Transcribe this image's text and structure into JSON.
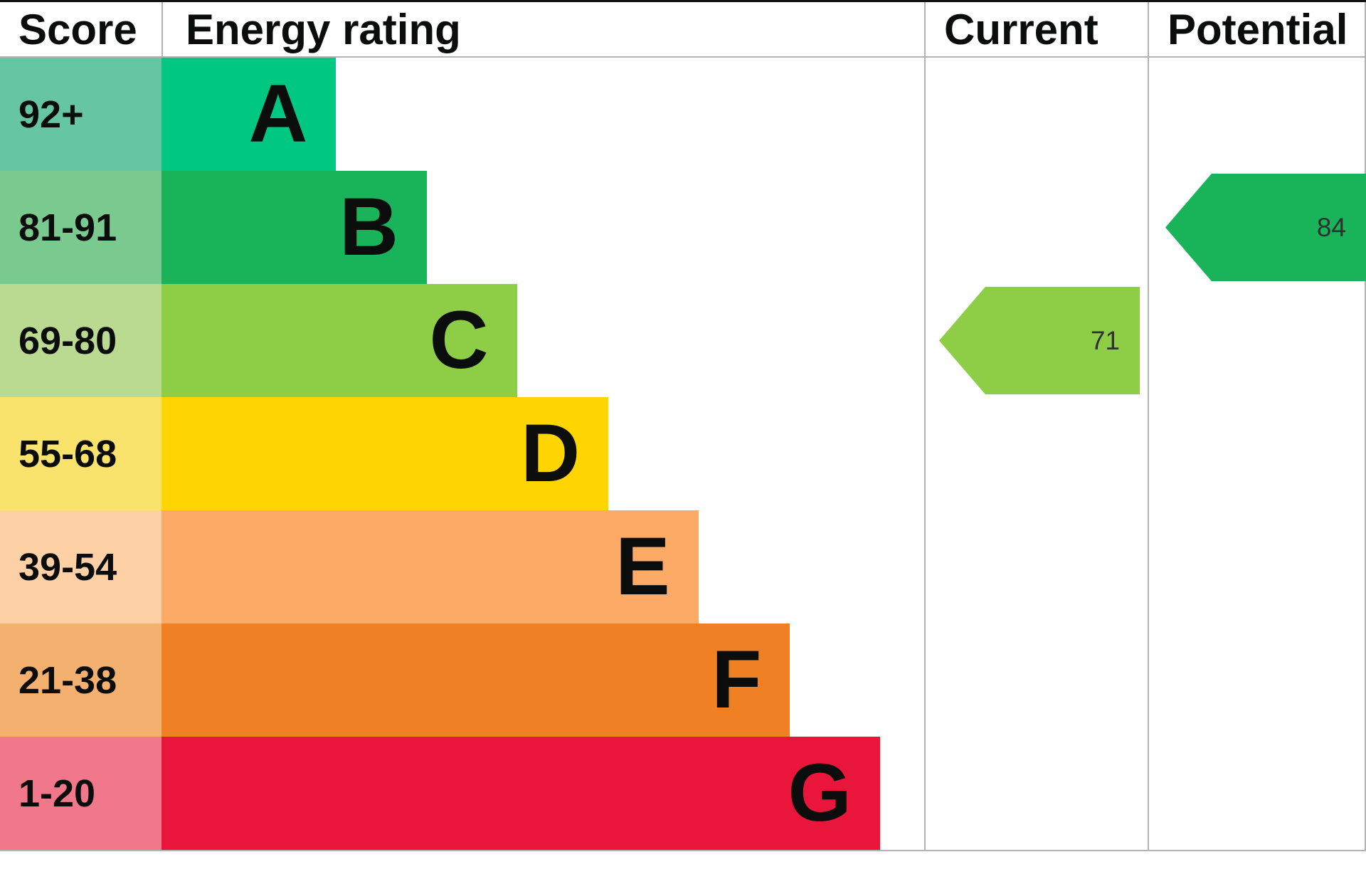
{
  "header": {
    "score": "Score",
    "energy_rating": "Energy rating",
    "current": "Current",
    "potential": "Potential"
  },
  "chart_data": {
    "type": "bar",
    "chart_kind": "epc-energy-rating",
    "columns": [
      "Score",
      "Energy rating",
      "Current",
      "Potential"
    ],
    "bands": [
      {
        "letter": "A",
        "range": "92+",
        "color": "#00c781",
        "tint": "#65c6a1",
        "width": "22.9%"
      },
      {
        "letter": "B",
        "range": "81-91",
        "color": "#19b459",
        "tint": "#7ac98f",
        "width": "34.8%"
      },
      {
        "letter": "C",
        "range": "69-80",
        "color": "#8dce46",
        "tint": "#b9da90",
        "width": "46.6%"
      },
      {
        "letter": "D",
        "range": "55-68",
        "color": "#ffd500",
        "tint": "#f9e36c",
        "width": "58.6%"
      },
      {
        "letter": "E",
        "range": "39-54",
        "color": "#fcaa65",
        "tint": "#fdd0a5",
        "width": "70.4%"
      },
      {
        "letter": "F",
        "range": "21-38",
        "color": "#ef8023",
        "tint": "#f4b06e",
        "width": "82.4%"
      },
      {
        "letter": "G",
        "range": "1-20",
        "color": "#e9153b",
        "tint": "#f0788a",
        "width": "94.2%"
      }
    ],
    "current": {
      "value": "71",
      "band": "C",
      "color": "#8dce46"
    },
    "potential": {
      "value": "84",
      "band": "B",
      "color": "#19b459"
    }
  }
}
